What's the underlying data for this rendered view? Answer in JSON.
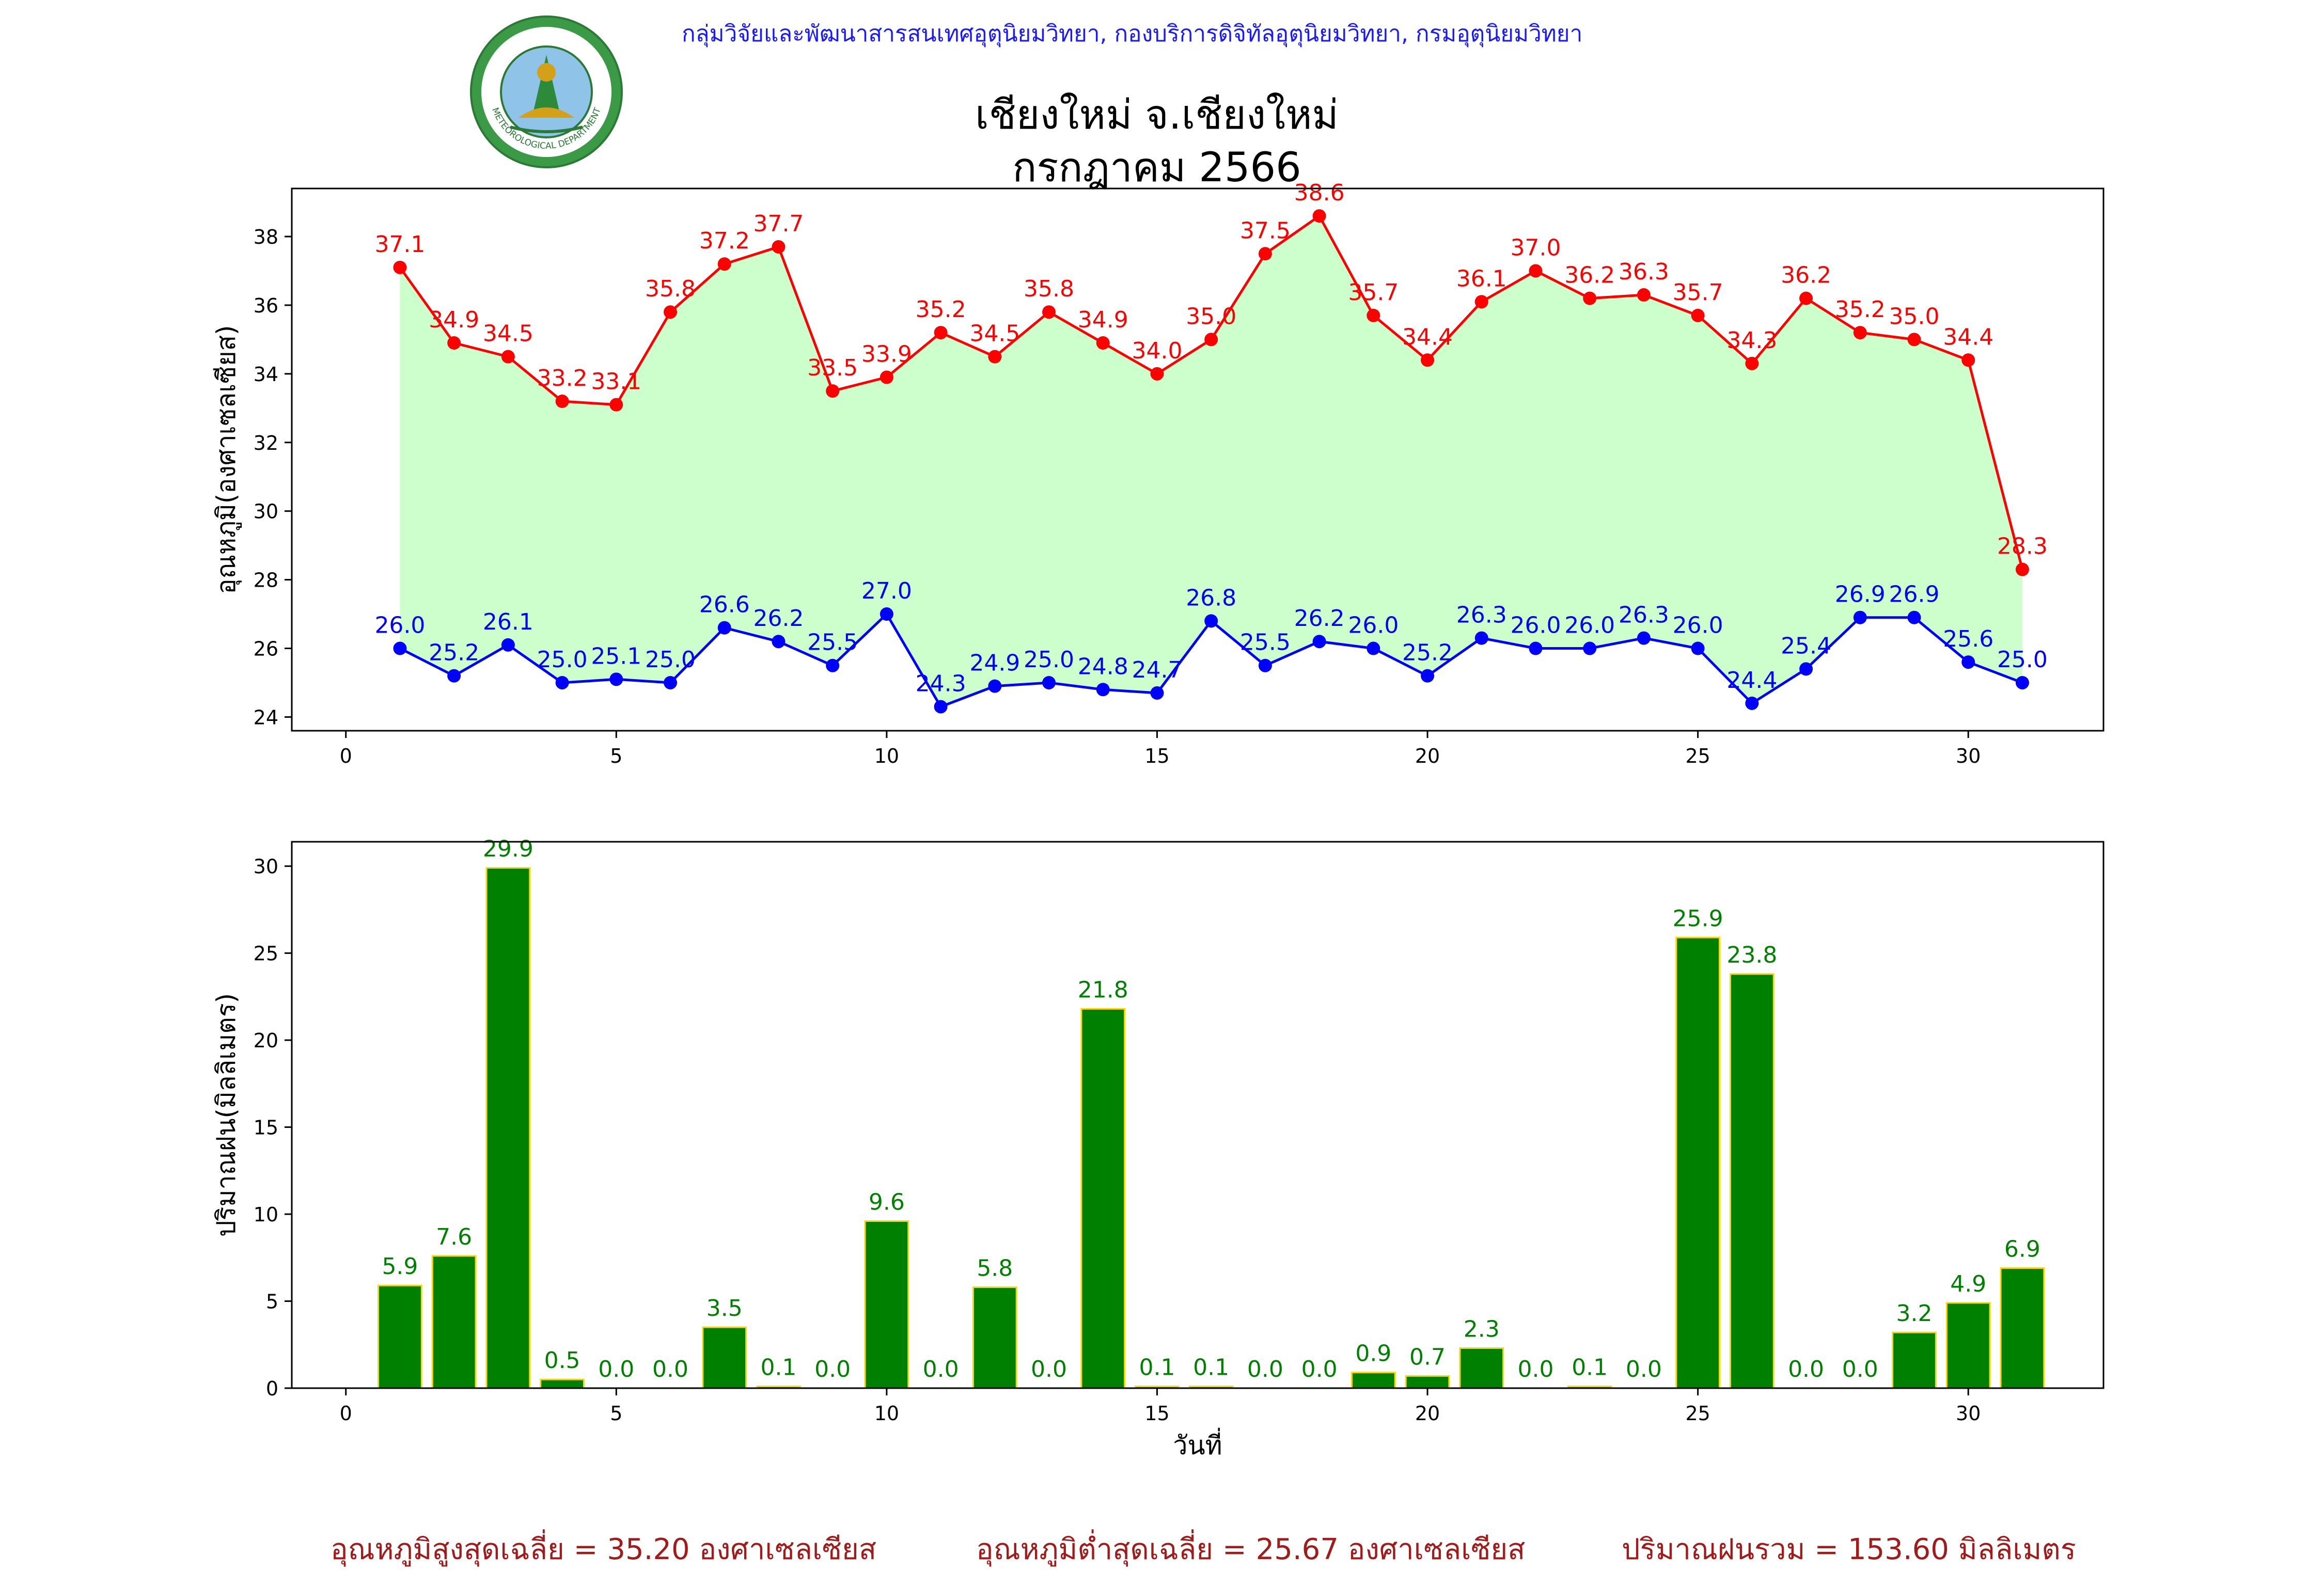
{
  "header": {
    "caption": "กลุ่มวิจัยและพัฒนาสารสนเทศอุตุนิยมวิทยา, กองบริการดิจิทัลอุตุนิยมวิทยา, กรมอุตุนิยมวิทยา",
    "title_line1": "เชียงใหม่ จ.เชียงใหม่",
    "title_line2": "กรกฎาคม 2566",
    "logo": {
      "icon": "meteorological-department-seal-icon",
      "text_top": "กรมอุตุนิยมวิทยา",
      "text_bottom": "METEOROLOGICAL DEPARTMENT"
    }
  },
  "summary": {
    "avg_max_temp": "อุณหภูมิสูงสุดเฉลี่ย = 35.20 องศาเซลเซียส",
    "avg_min_temp": "อุณหภูมิต่ำสุดเฉลี่ย = 25.67 องศาเซลเซียส",
    "total_rain": "ปริมาณฝนรวม = 153.60 มิลลิเมตร"
  },
  "colors": {
    "max_temp": "#ff0000",
    "min_temp": "#0000ff",
    "fill": "#ccffcc",
    "rain_bar": "#008000",
    "rain_edge": "#ffd700",
    "rain_label": "#008000",
    "caption": "#1a1aff",
    "summary": "#a11b1b"
  },
  "chart_data": [
    {
      "type": "line",
      "ylabel": "อุณหภูมิ(องศาเซลเซียส)",
      "xlabel": "",
      "x": [
        1,
        2,
        3,
        4,
        5,
        6,
        7,
        8,
        9,
        10,
        11,
        12,
        13,
        14,
        15,
        16,
        17,
        18,
        19,
        20,
        21,
        22,
        23,
        24,
        25,
        26,
        27,
        28,
        29,
        30,
        31
      ],
      "series": [
        {
          "role": "max",
          "values": [
            37.1,
            34.9,
            34.5,
            33.2,
            33.1,
            35.8,
            37.2,
            37.7,
            33.5,
            33.9,
            35.2,
            34.5,
            35.8,
            34.9,
            34.0,
            35.0,
            37.5,
            38.6,
            35.7,
            34.4,
            36.1,
            37.0,
            36.2,
            36.3,
            35.7,
            34.3,
            36.2,
            35.2,
            35.0,
            34.4,
            28.3
          ]
        },
        {
          "role": "min",
          "values": [
            26.0,
            25.2,
            26.1,
            25.0,
            25.1,
            25.0,
            26.6,
            26.2,
            25.5,
            27.0,
            24.3,
            24.9,
            25.0,
            24.8,
            24.7,
            26.8,
            25.5,
            26.2,
            26.0,
            25.2,
            26.3,
            26.0,
            26.0,
            26.3,
            26.0,
            24.4,
            25.4,
            26.9,
            26.9,
            25.6,
            25.0
          ]
        }
      ],
      "xlim": [
        -1,
        32.5
      ],
      "ylim": [
        23.6,
        39.4
      ],
      "xticks": [
        0,
        5,
        10,
        15,
        20,
        25,
        30
      ],
      "yticks": [
        24,
        26,
        28,
        30,
        32,
        34,
        36,
        38
      ],
      "grid": false
    },
    {
      "type": "bar",
      "ylabel": "ปริมาณฝน(มิลลิเมตร)",
      "xlabel": "วันที่",
      "categories": [
        1,
        2,
        3,
        4,
        5,
        6,
        7,
        8,
        9,
        10,
        11,
        12,
        13,
        14,
        15,
        16,
        17,
        18,
        19,
        20,
        21,
        22,
        23,
        24,
        25,
        26,
        27,
        28,
        29,
        30,
        31
      ],
      "values": [
        5.9,
        7.6,
        29.9,
        0.5,
        0.0,
        0.0,
        3.5,
        0.1,
        0.0,
        9.6,
        0.0,
        5.8,
        0.0,
        21.8,
        0.1,
        0.1,
        0.0,
        0.0,
        0.9,
        0.7,
        2.3,
        0.0,
        0.1,
        0.0,
        25.9,
        23.8,
        0.0,
        0.0,
        3.2,
        4.9,
        6.9
      ],
      "xlim": [
        -1,
        32.5
      ],
      "ylim": [
        0,
        31.4
      ],
      "xticks": [
        0,
        5,
        10,
        15,
        20,
        25,
        30
      ],
      "yticks": [
        0,
        5,
        10,
        15,
        20,
        25,
        30
      ],
      "grid": false
    }
  ]
}
